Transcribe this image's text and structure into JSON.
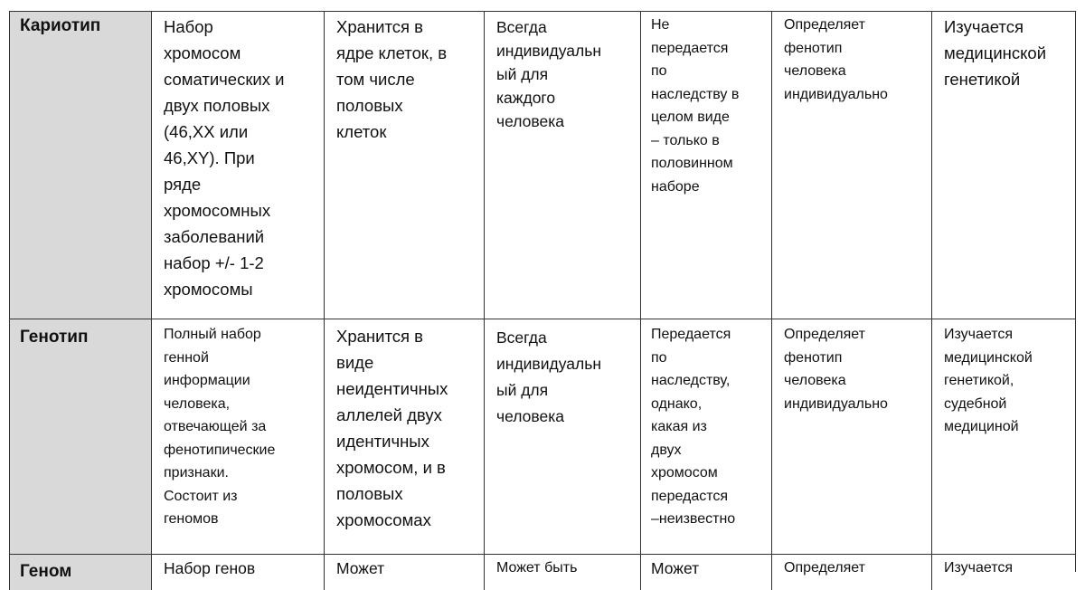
{
  "rows": [
    {
      "term": "Кариотип",
      "cells": [
        "Набор\nхромосом\nсоматических и\nдвух половых\n(46,XX или\n46,XY).  При\nряде\nхромосомных\nзаболеваний\nнабор +/- 1-2\nхромосомы",
        "Хранится в\nядре клеток, в\nтом числе\nполовых\nклеток",
        "Всегда\nиндивидуальн\nый для\nкаждого\nчеловека",
        "Не\nпередается\nпо\nнаследству в\nцелом виде\n– только в\nполовинном\nнаборе",
        "Определяет\nфенотип\nчеловека\nиндивидуально",
        "Изучается\nмедицинской\nгенетикой"
      ]
    },
    {
      "term": "Генотип",
      "cells": [
        "Полный набор\nгенной\nинформации\nчеловека,\nотвечающей за\nфенотипические\nпризнаки.\nСостоит из\nгеномов",
        "Хранится в\nвиде\nнеидентичных\nаллелей двух\nидентичных\nхромосом, и в\nполовых\nхромосомах",
        "Всегда\nиндивидуальн\nый для\nчеловека",
        "Передается\nпо\nнаследству,\nоднако,\nкакая из\nдвух\nхромосом\nпередастся\n–неизвестно",
        "Определяет\nфенотип\nчеловека\nиндивидуально",
        "Изучается\nмедицинской\nгенетикой,\nсудебной\nмедициной"
      ]
    },
    {
      "term": "Геном",
      "cells": [
        "Набор генов",
        "Может",
        "Может быть",
        "Может",
        "Определяет",
        "Изучается"
      ]
    }
  ]
}
